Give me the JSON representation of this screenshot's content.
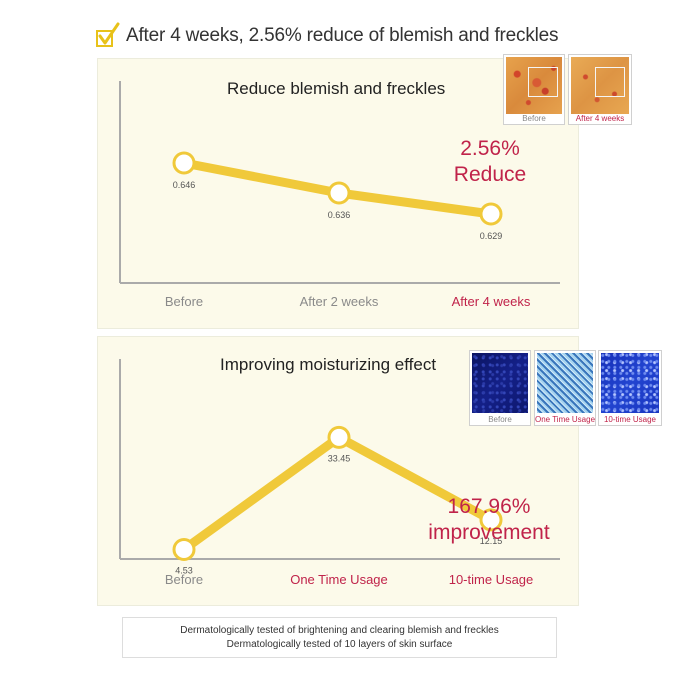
{
  "header": {
    "text": "After 4 weeks, 2.56% reduce of blemish and freckles",
    "icon": "checkbox-check-icon",
    "check_color": "#e8c21a"
  },
  "colors": {
    "line": "#f0c93a",
    "axis": "#aaaaaa",
    "accent": "#c0234a",
    "panel_bg": "#fcfaea"
  },
  "chart_data": [
    {
      "type": "line",
      "title": "Reduce blemish and freckles",
      "categories": [
        "Before",
        "After 2 weeks",
        "After 4 weeks"
      ],
      "values": [
        0.646,
        0.636,
        0.629
      ],
      "value_labels": [
        "0.646",
        "0.636",
        "0.629"
      ],
      "category_colors": [
        "#8a8a8a",
        "#8a8a8a",
        "#c0234a"
      ],
      "highlight_lines": [
        "2.56%",
        "Reduce"
      ],
      "ylim": [
        0.6,
        0.66
      ],
      "grid": false,
      "images": [
        {
          "caption": "Before",
          "kind": "skin-orange",
          "caption_color": "#888888"
        },
        {
          "caption": "After 4 weeks",
          "kind": "skin-orange",
          "caption_color": "#c0234a"
        }
      ]
    },
    {
      "type": "line",
      "title": "Improving moisturizing effect",
      "categories": [
        "Before",
        "One Time Usage",
        "10-time Usage"
      ],
      "values": [
        4.53,
        33.45,
        12.15
      ],
      "value_labels": [
        "4.53",
        "33.45",
        "12.15"
      ],
      "category_colors": [
        "#8a8a8a",
        "#c0234a",
        "#c0234a"
      ],
      "highlight_lines": [
        "167.96%",
        "improvement"
      ],
      "ylim": [
        0,
        40
      ],
      "grid": false,
      "images": [
        {
          "caption": "Before",
          "kind": "moisture-dark-blue",
          "caption_color": "#888888"
        },
        {
          "caption": "One Time Usage",
          "kind": "moisture-light-blue",
          "caption_color": "#c0234a"
        },
        {
          "caption": "10-time Usage",
          "kind": "moisture-blue",
          "caption_color": "#c0234a"
        }
      ]
    }
  ],
  "footer": {
    "line1": "Dermatologically tested of brightening and clearing blemish and freckles",
    "line2": "Dermatologically tested of 10 layers of skin surface"
  }
}
